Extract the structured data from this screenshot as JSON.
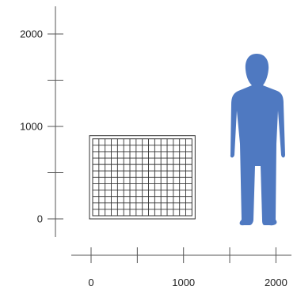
{
  "chart_data": {
    "type": "scale-comparison",
    "y_axis": {
      "ticks": [
        {
          "value": 0,
          "label": "0"
        },
        {
          "value": 500,
          "label": ""
        },
        {
          "value": 1000,
          "label": "1000"
        },
        {
          "value": 1500,
          "label": ""
        },
        {
          "value": 2000,
          "label": "2000"
        }
      ],
      "range": [
        -200,
        2300
      ]
    },
    "x_axis": {
      "ticks": [
        {
          "value": 0,
          "label": "0"
        },
        {
          "value": 500,
          "label": ""
        },
        {
          "value": 1000,
          "label": "1000"
        },
        {
          "value": 1500,
          "label": ""
        },
        {
          "value": 2000,
          "label": "2000"
        }
      ],
      "range": [
        -200,
        2200
      ]
    },
    "objects": [
      {
        "kind": "grid-panel",
        "x_start": 0,
        "x_end": 1100,
        "y_bottom": 0,
        "y_top": 900,
        "columns": 16,
        "rows": 12
      },
      {
        "kind": "human-silhouette",
        "x_center": 1830,
        "y_bottom": -60,
        "height": 1830
      }
    ],
    "colors": {
      "silhouette": "#4f79c1",
      "lines": "#555555",
      "grid": "#333333"
    }
  }
}
